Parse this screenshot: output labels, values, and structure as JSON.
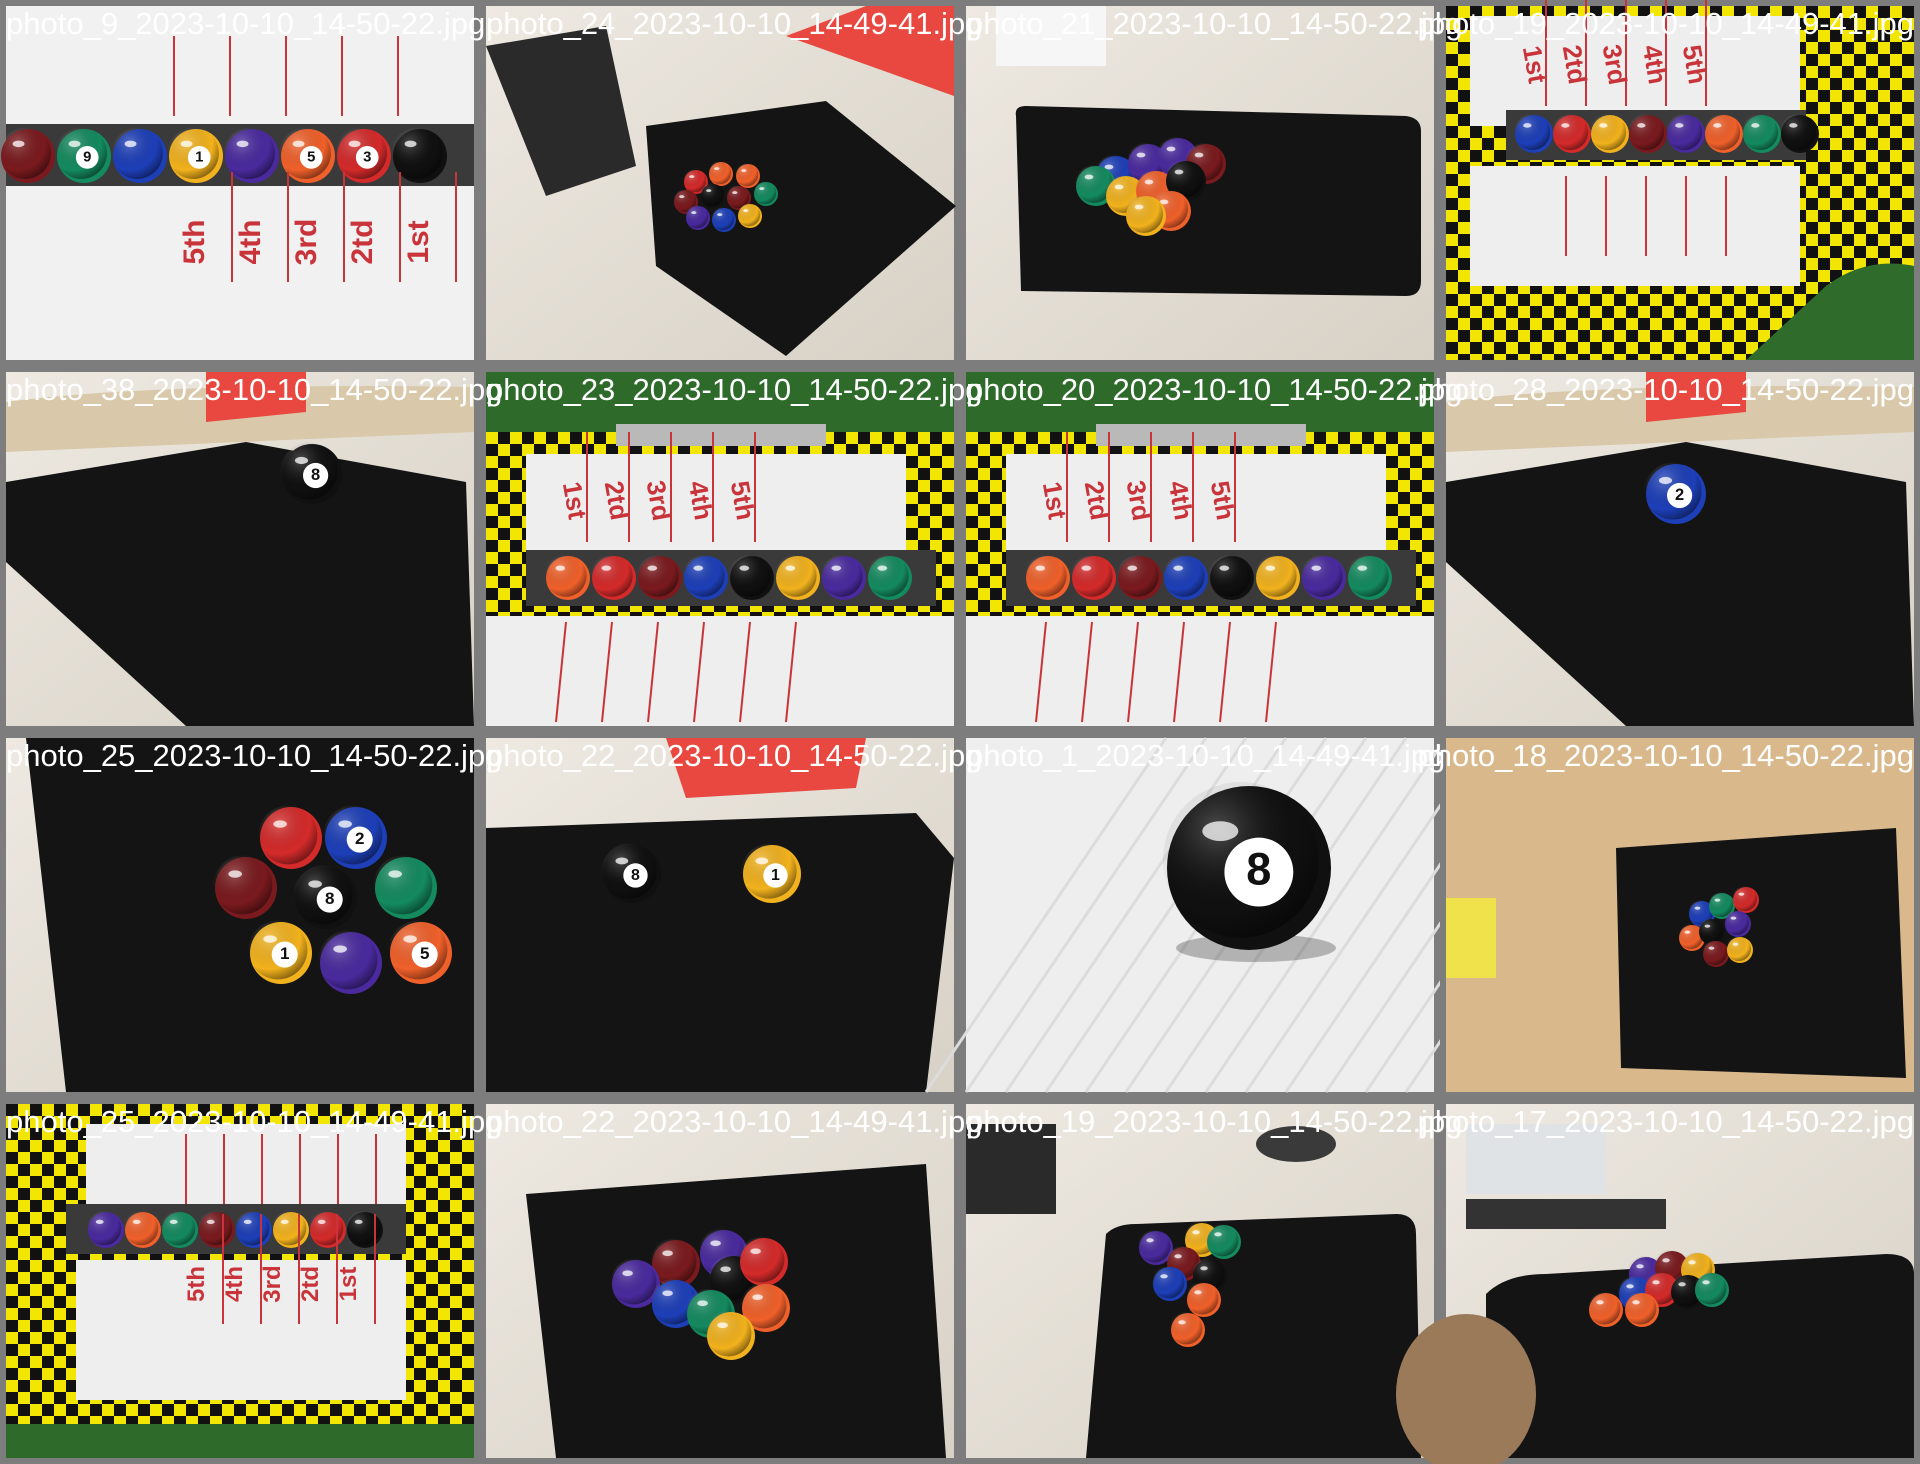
{
  "tiles": [
    {
      "filename": "photo_9_2023-10-10_14-50-22.jpg",
      "scene": "rack-rotated",
      "labels": [
        "5th",
        "4th",
        "3rd",
        "2td",
        "1st"
      ]
    },
    {
      "filename": "photo_24_2023-10-10_14-49-41.jpg",
      "scene": "mat-cluster-far"
    },
    {
      "filename": "photo_21_2023-10-10_14-50-22.jpg",
      "scene": "mat-cluster-near"
    },
    {
      "filename": "photo_19_2023-10-10_14-49-41.jpg",
      "scene": "rack-top",
      "labels": [
        "1st",
        "2td",
        "3rd",
        "4th",
        "5th"
      ]
    },
    {
      "filename": "photo_38_2023-10-10_14-50-22.jpg",
      "scene": "mat-single",
      "ball_number": "8"
    },
    {
      "filename": "photo_23_2023-10-10_14-50-22.jpg",
      "scene": "rack-track",
      "labels": [
        "1st",
        "2td",
        "3rd",
        "4th",
        "5th"
      ]
    },
    {
      "filename": "photo_20_2023-10-10_14-50-22.jpg",
      "scene": "rack-track",
      "labels": [
        "1st",
        "2td",
        "3rd",
        "4th",
        "5th"
      ]
    },
    {
      "filename": "photo_28_2023-10-10_14-50-22.jpg",
      "scene": "mat-single",
      "ball_number": "2"
    },
    {
      "filename": "photo_25_2023-10-10_14-50-22.jpg",
      "scene": "mat-cluster-close"
    },
    {
      "filename": "photo_22_2023-10-10_14-50-22.jpg",
      "scene": "mat-two-balls",
      "ball_numbers": [
        "8",
        "1"
      ]
    },
    {
      "filename": "photo_1_2023-10-10_14-49-41.jpg",
      "scene": "eight-ball-closeup",
      "ball_number": "8"
    },
    {
      "filename": "photo_18_2023-10-10_14-50-22.jpg",
      "scene": "mat-wall"
    },
    {
      "filename": "photo_25_2023-10-10_14-49-41.jpg",
      "scene": "rack-bottom",
      "labels": [
        "5th",
        "4th",
        "3rd",
        "2td",
        "1st"
      ]
    },
    {
      "filename": "photo_22_2023-10-10_14-49-41.jpg",
      "scene": "mat-cluster-mid"
    },
    {
      "filename": "photo_19_2023-10-10_14-50-22.jpg",
      "scene": "desk-scattered"
    },
    {
      "filename": "photo_17_2023-10-10_14-50-22.jpg",
      "scene": "desk-cluster"
    }
  ],
  "colors": {
    "mat": "#141414",
    "table": "#e6e1d8",
    "board": "#eeeeee",
    "label_red": "#c9343a",
    "checker_yellow": "#f2e600",
    "ball_palette": [
      "#7a1a1e",
      "#148a5f",
      "#1d3fb8",
      "#f2b21d",
      "#4a2a9e",
      "#f0602a",
      "#d42a2a",
      "#101010"
    ]
  }
}
